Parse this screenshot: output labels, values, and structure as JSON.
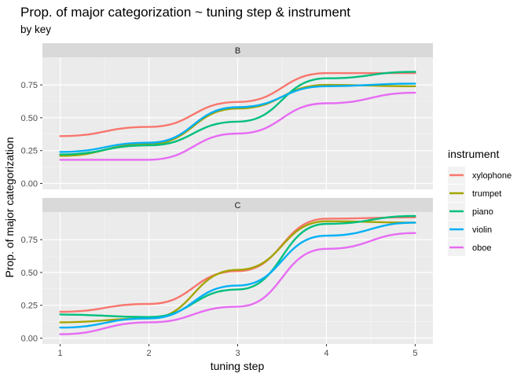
{
  "chart_data": {
    "type": "line",
    "title": "Prop. of major categorization ~ tuning step & instrument",
    "subtitle": "by key",
    "xlabel": "tuning step",
    "ylabel": "Prop. of major categorization",
    "x": [
      1,
      2,
      3,
      4,
      5
    ],
    "x_ticks": [
      "1",
      "2",
      "3",
      "4",
      "5"
    ],
    "y_ticks": [
      "0.00",
      "0.25",
      "0.50",
      "0.75"
    ],
    "ylim": [
      0,
      0.88
    ],
    "grid": true,
    "legend": {
      "title": "instrument",
      "position": "right",
      "entries": [
        "xylophone",
        "trumpet",
        "piano",
        "violin",
        "oboe"
      ]
    },
    "colors": {
      "xylophone": "#F8766D",
      "trumpet": "#A3A500",
      "piano": "#00BF7D",
      "violin": "#00B0F6",
      "oboe": "#E76BF3"
    },
    "facets": [
      {
        "label": "B",
        "series": [
          {
            "name": "xylophone",
            "values": [
              0.36,
              0.43,
              0.62,
              0.84,
              0.84
            ]
          },
          {
            "name": "trumpet",
            "values": [
              0.21,
              0.3,
              0.57,
              0.75,
              0.74
            ]
          },
          {
            "name": "piano",
            "values": [
              0.22,
              0.29,
              0.47,
              0.8,
              0.85
            ]
          },
          {
            "name": "violin",
            "values": [
              0.24,
              0.31,
              0.58,
              0.74,
              0.76
            ]
          },
          {
            "name": "oboe",
            "values": [
              0.18,
              0.18,
              0.38,
              0.61,
              0.69
            ]
          }
        ]
      },
      {
        "label": "C",
        "series": [
          {
            "name": "xylophone",
            "values": [
              0.2,
              0.26,
              0.51,
              0.91,
              0.92
            ]
          },
          {
            "name": "trumpet",
            "values": [
              0.12,
              0.15,
              0.52,
              0.89,
              0.88
            ]
          },
          {
            "name": "piano",
            "values": [
              0.18,
              0.16,
              0.37,
              0.87,
              0.93
            ]
          },
          {
            "name": "violin",
            "values": [
              0.08,
              0.15,
              0.4,
              0.78,
              0.88
            ]
          },
          {
            "name": "oboe",
            "values": [
              0.03,
              0.12,
              0.24,
              0.68,
              0.8
            ]
          }
        ]
      }
    ]
  }
}
